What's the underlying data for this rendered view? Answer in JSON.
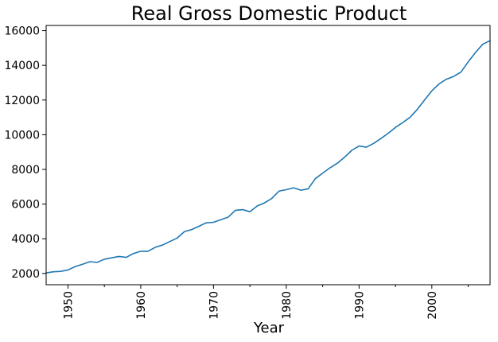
{
  "chart_data": {
    "type": "line",
    "title": "Real Gross Domestic Product",
    "xlabel": "Year",
    "ylabel": "",
    "xlim": [
      1947,
      2008
    ],
    "ylim": [
      1350,
      16300
    ],
    "xticks_major": [
      1950,
      1960,
      1970,
      1980,
      1990,
      2000
    ],
    "xticks_minor": [
      1955,
      1965,
      1975,
      1985,
      1995,
      2005
    ],
    "yticks": [
      2000,
      4000,
      6000,
      8000,
      10000,
      12000,
      14000,
      16000
    ],
    "grid": false,
    "colors": {
      "line": "#1f77b4"
    },
    "series": [
      {
        "x": [
          1947,
          1948,
          1949,
          1950,
          1951,
          1952,
          1953,
          1954,
          1955,
          1956,
          1957,
          1958,
          1959,
          1960,
          1961,
          1962,
          1963,
          1964,
          1965,
          1966,
          1967,
          1968,
          1969,
          1970,
          1971,
          1972,
          1973,
          1974,
          1975,
          1976,
          1977,
          1978,
          1979,
          1980,
          1981,
          1982,
          1983,
          1984,
          1985,
          1986,
          1987,
          1988,
          1989,
          1990,
          1991,
          1992,
          1993,
          1994,
          1995,
          1996,
          1997,
          1998,
          1999,
          2000,
          2001,
          2002,
          2003,
          2004,
          2005,
          2006,
          2007,
          2008
        ],
        "values": [
          2030,
          2100,
          2120,
          2200,
          2400,
          2530,
          2680,
          2640,
          2820,
          2900,
          2980,
          2930,
          3150,
          3280,
          3280,
          3510,
          3640,
          3840,
          4040,
          4410,
          4530,
          4720,
          4920,
          4950,
          5100,
          5240,
          5640,
          5680,
          5560,
          5890,
          6070,
          6320,
          6750,
          6830,
          6940,
          6800,
          6880,
          7470,
          7780,
          8090,
          8350,
          8700,
          9100,
          9350,
          9280,
          9500,
          9780,
          10080,
          10420,
          10700,
          11000,
          11460,
          12000,
          12530,
          12930,
          13200,
          13360,
          13610,
          14200,
          14740,
          15220,
          15420
        ]
      }
    ]
  }
}
